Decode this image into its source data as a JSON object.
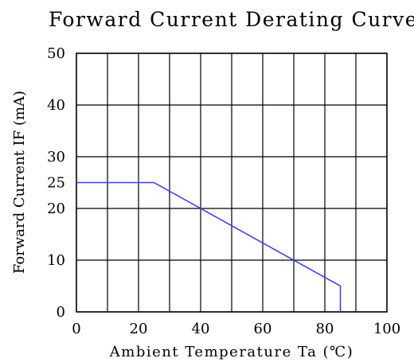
{
  "chart_data": {
    "type": "line",
    "title": "Forward Current Derating Curve",
    "xlabel": "Ambient Temperature Ta (℃)",
    "ylabel": "Forward Current IF (mA)",
    "xlim": [
      0,
      100
    ],
    "ylim": [
      0,
      50
    ],
    "grid": true,
    "grid_x": [
      0,
      10,
      20,
      30,
      40,
      50,
      60,
      70,
      80,
      90,
      100
    ],
    "grid_y": [
      0,
      10,
      20,
      30,
      40,
      50
    ],
    "x_ticks": [
      {
        "value": 0,
        "label": "0"
      },
      {
        "value": 20,
        "label": "20"
      },
      {
        "value": 40,
        "label": "40"
      },
      {
        "value": 60,
        "label": "60"
      },
      {
        "value": 80,
        "label": "80"
      },
      {
        "value": 100,
        "label": "100"
      }
    ],
    "y_ticks": [
      {
        "value": 0,
        "label": "0"
      },
      {
        "value": 10,
        "label": "10"
      },
      {
        "value": 20,
        "label": "20"
      },
      {
        "value": 25,
        "label": "25"
      },
      {
        "value": 30,
        "label": "30"
      },
      {
        "value": 40,
        "label": "40"
      },
      {
        "value": 50,
        "label": "50"
      }
    ],
    "series": [
      {
        "color": "#3a3af0",
        "x": [
          0,
          25,
          85,
          85
        ],
        "y": [
          25,
          25,
          5,
          0
        ]
      }
    ]
  }
}
